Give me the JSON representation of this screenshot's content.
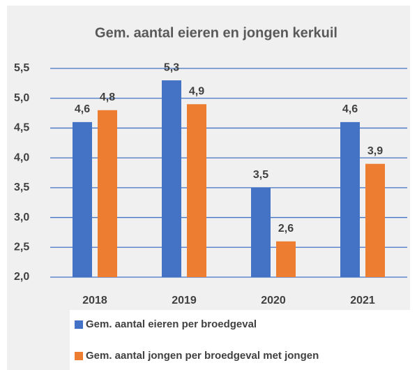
{
  "chart_data": {
    "type": "bar",
    "title": "Gem. aantal eieren en jongen kerkuil",
    "categories": [
      "2018",
      "2019",
      "2020",
      "2021"
    ],
    "series": [
      {
        "name": "Gem. aantal eieren per broedgeval",
        "color": "#4472c4",
        "values": [
          4.6,
          5.3,
          3.5,
          4.6
        ],
        "value_labels": [
          "4,6",
          "5,3",
          "3,5",
          "4,6"
        ]
      },
      {
        "name": "Gem. aantal jongen per broedgeval met jongen",
        "color": "#ed7d31",
        "values": [
          4.8,
          4.9,
          2.6,
          3.9
        ],
        "value_labels": [
          "4,8",
          "4,9",
          "2,6",
          "3,9"
        ]
      }
    ],
    "ylim": [
      2.0,
      5.5
    ],
    "yticks": [
      {
        "value": 2.0,
        "label": "2,0"
      },
      {
        "value": 2.5,
        "label": "2,5"
      },
      {
        "value": 3.0,
        "label": "3,0"
      },
      {
        "value": 3.5,
        "label": "3,5"
      },
      {
        "value": 4.0,
        "label": "4,0"
      },
      {
        "value": 4.5,
        "label": "4,5"
      },
      {
        "value": 5.0,
        "label": "5,0"
      },
      {
        "value": 5.5,
        "label": "5,5"
      }
    ],
    "grid": true,
    "grid_color": "#4472c4",
    "legend": "bottom"
  }
}
